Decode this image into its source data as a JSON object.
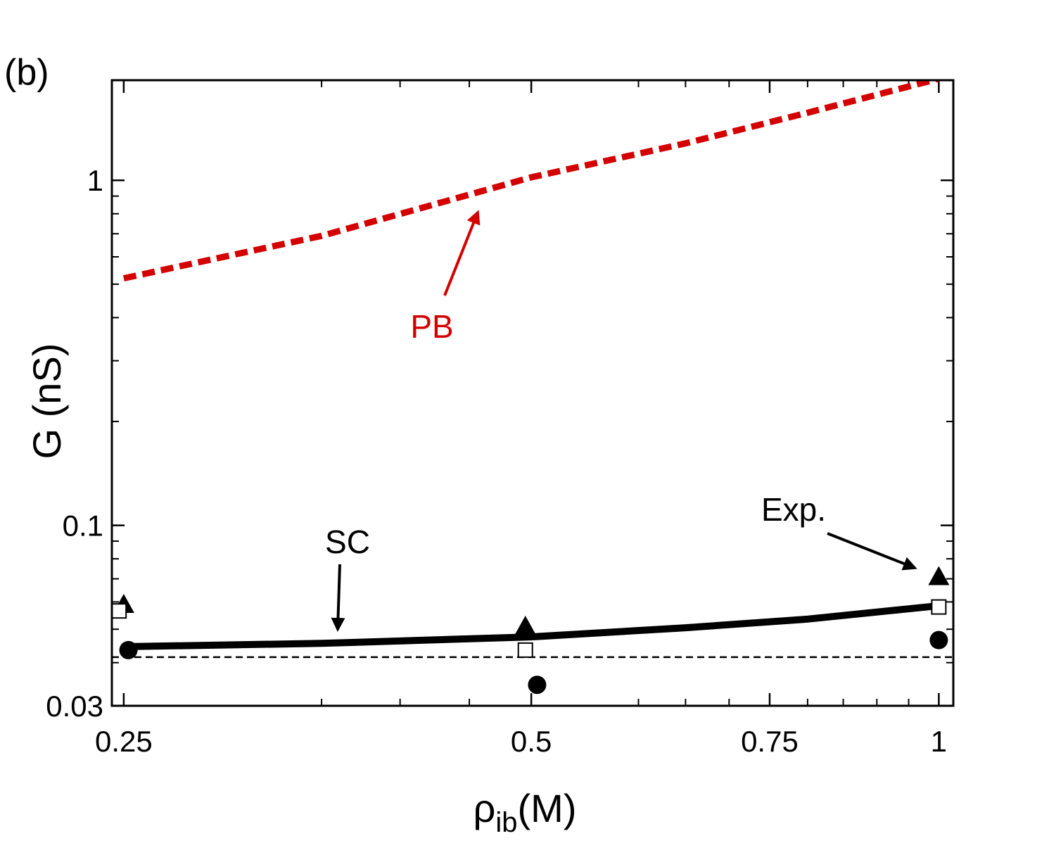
{
  "chart_data": {
    "type": "line",
    "panel_label": "(b)",
    "xlabel": "ρ",
    "xlabel_sub": "ib",
    "xlabel_unit": "(M)",
    "ylabel": "G (nS)",
    "yscale": "log",
    "xscale": "log",
    "xlim": [
      0.245,
      1.025
    ],
    "ylim": [
      0.03,
      1.95
    ],
    "x_ticks": [
      {
        "value": 0.25,
        "label": "0.25"
      },
      {
        "value": 0.5,
        "label": "0.5"
      },
      {
        "value": 0.75,
        "label": "0.75"
      },
      {
        "value": 1,
        "label": "1"
      }
    ],
    "x_minor_ticks": [
      0.35,
      0.4,
      0.45,
      0.6,
      0.65,
      0.7,
      0.8,
      0.85,
      0.9,
      0.95
    ],
    "y_ticks": [
      {
        "value": 0.03,
        "label": "0.03"
      },
      {
        "value": 0.1,
        "label": "0.1"
      },
      {
        "value": 1,
        "label": "1"
      }
    ],
    "y_minor_ticks": [
      0.04,
      0.05,
      0.06,
      0.07,
      0.08,
      0.09,
      0.2,
      0.3,
      0.4,
      0.5,
      0.6,
      0.7,
      0.8,
      0.9
    ],
    "series": [
      {
        "name": "PB",
        "style": "dashed-thick",
        "color": "#d40000",
        "x": [
          0.25,
          0.35,
          0.5,
          0.65,
          0.8,
          1.0
        ],
        "y": [
          0.52,
          0.69,
          1.02,
          1.28,
          1.57,
          1.97
        ]
      },
      {
        "name": "SC",
        "style": "solid-thick",
        "color": "#000000",
        "x": [
          0.25,
          0.35,
          0.5,
          0.65,
          0.8,
          1.0
        ],
        "y": [
          0.0445,
          0.0455,
          0.0475,
          0.0505,
          0.0535,
          0.0585
        ]
      },
      {
        "name": "reference",
        "style": "dashed-thin",
        "color": "#000000",
        "x": [
          0.245,
          1.025
        ],
        "y": [
          0.0415,
          0.0415
        ]
      },
      {
        "name": "Exp. triangles",
        "marker": "triangle",
        "color": "#000000",
        "x": [
          0.25,
          0.495,
          1.0
        ],
        "y": [
          0.059,
          0.051,
          0.071
        ]
      },
      {
        "name": "Exp. open squares",
        "marker": "open-square",
        "color": "#000000",
        "x": [
          0.248,
          0.495,
          1.0
        ],
        "y": [
          0.0565,
          0.0435,
          0.058
        ]
      },
      {
        "name": "Exp. circles",
        "marker": "circle",
        "color": "#000000",
        "x": [
          0.252,
          0.505,
          1.0
        ],
        "y": [
          0.0435,
          0.0345,
          0.0465
        ]
      }
    ],
    "annotations": [
      {
        "text": "PB",
        "color": "#d40000"
      },
      {
        "text": "SC",
        "color": "#000000"
      },
      {
        "text": "Exp.",
        "color": "#000000"
      }
    ]
  }
}
